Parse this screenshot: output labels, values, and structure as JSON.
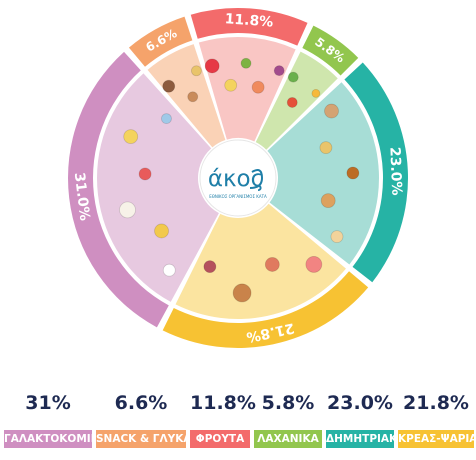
{
  "chart_data": {
    "type": "pie",
    "style": "donut with food illustrations and outer label ring",
    "categories": [
      "ΓΑΛΑΚΤΟΚΟΜΙΚΑ",
      "SNACK & ΓΛΥΚΑ",
      "ΦΡΟΥΤΑ",
      "ΛΑΧΑΝΙΚΑ",
      "ΔΗΜΗΤΡΙΑΚΑ",
      "ΚΡΕΑΣ-ΨΑΡΙΑ"
    ],
    "values": [
      31.0,
      6.6,
      11.8,
      5.8,
      23.0,
      21.8
    ],
    "ring_labels": [
      "31.0%",
      "6.6%",
      "11.8%",
      "5.8%",
      "23.0%",
      "21.8%"
    ],
    "colors": [
      "#cf8fc1",
      "#f5a36b",
      "#f36b6b",
      "#92c64e",
      "#26b3a5",
      "#f7c233"
    ],
    "inner_colors": [
      "#e7c9e0",
      "#fad2b6",
      "#f9c6c4",
      "#cfe6ad",
      "#a7ddd6",
      "#fbe4a0"
    ]
  },
  "legend": [
    {
      "value": "31%",
      "label": "ΓΑΛΑΚΤΟΚΟΜΙΚΑ"
    },
    {
      "value": "6.6%",
      "label": "SNACK & ΓΛΥΚΑ"
    },
    {
      "value": "11.8%",
      "label": "ΦΡΟΥΤΑ"
    },
    {
      "value": "5.8%",
      "label": "ΛΑΧΑΝΙΚΑ"
    },
    {
      "value": "23.0%",
      "label": "ΔΗΜΗΤΡΙΑΚΑ"
    },
    {
      "value": "21.8%",
      "label": "ΚΡΕΑΣ-ΨΑΡΙΑ"
    }
  ],
  "logo": {
    "name": "άκος",
    "tagline": "ΕΘΝΙΚΟΣ ΟΡΓΑΝΙΣΜΟΣ ΚΑΤΑ",
    "color": "#1f7fa8"
  }
}
